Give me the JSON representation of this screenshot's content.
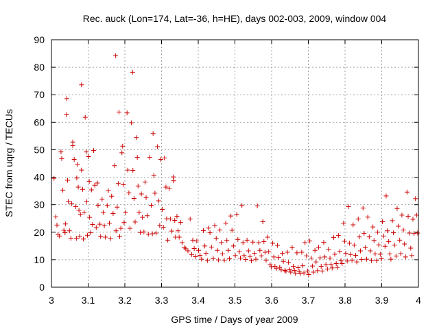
{
  "chart_data": {
    "type": "scatter",
    "title": "Rec. auck (Lon=174, Lat=-36, h=HE), days 002-003, 2009, window 004",
    "xlabel": "GPS time / Days of year 2009",
    "ylabel": "STEC from uqrg / TECUs",
    "xlim": [
      3.0,
      4.0
    ],
    "ylim": [
      0,
      90
    ],
    "xticks": [
      3.0,
      3.1,
      3.2,
      3.3,
      3.4,
      3.5,
      3.6,
      3.7,
      3.8,
      3.9,
      4.0
    ],
    "xtick_labels": [
      "3",
      "3.1",
      "3.2",
      "3.3",
      "3.4",
      "3.5",
      "3.6",
      "3.7",
      "3.8",
      "3.9",
      "4"
    ],
    "yticks": [
      0,
      10,
      20,
      30,
      40,
      50,
      60,
      70,
      80,
      90
    ],
    "ytick_labels": [
      "0",
      "10",
      "20",
      "30",
      "40",
      "50",
      "60",
      "70",
      "80",
      "90"
    ],
    "grid": true,
    "marker": "+",
    "color": "#cc0000",
    "series": [
      {
        "name": "STEC",
        "points": [
          [
            3.007,
            39.6
          ],
          [
            3.012,
            25.6
          ],
          [
            3.015,
            22.6
          ],
          [
            3.018,
            19.2
          ],
          [
            3.022,
            18.6
          ],
          [
            3.026,
            49.2
          ],
          [
            3.028,
            46.8
          ],
          [
            3.031,
            35.3
          ],
          [
            3.034,
            20.7
          ],
          [
            3.037,
            19.8
          ],
          [
            3.038,
            23.0
          ],
          [
            3.041,
            62.7
          ],
          [
            3.042,
            68.6
          ],
          [
            3.044,
            38.9
          ],
          [
            3.046,
            31.2
          ],
          [
            3.049,
            20.5
          ],
          [
            3.053,
            17.8
          ],
          [
            3.055,
            30.4
          ],
          [
            3.058,
            52.8
          ],
          [
            3.058,
            51.5
          ],
          [
            3.062,
            46.5
          ],
          [
            3.066,
            29.3
          ],
          [
            3.068,
            17.8
          ],
          [
            3.069,
            39.7
          ],
          [
            3.071,
            44.7
          ],
          [
            3.073,
            36.4
          ],
          [
            3.075,
            28.0
          ],
          [
            3.077,
            18.5
          ],
          [
            3.079,
            26.5
          ],
          [
            3.082,
            73.6
          ],
          [
            3.082,
            42.6
          ],
          [
            3.085,
            35.6
          ],
          [
            3.087,
            17.5
          ],
          [
            3.089,
            27.2
          ],
          [
            3.092,
            61.8
          ],
          [
            3.095,
            49.2
          ],
          [
            3.096,
            31.1
          ],
          [
            3.098,
            18.9
          ],
          [
            3.101,
            47.5
          ],
          [
            3.103,
            38.5
          ],
          [
            3.104,
            25.4
          ],
          [
            3.107,
            19.8
          ],
          [
            3.109,
            35.4
          ],
          [
            3.112,
            22.8
          ],
          [
            3.115,
            49.7
          ],
          [
            3.118,
            37.1
          ],
          [
            3.122,
            21.7
          ],
          [
            3.125,
            37.9
          ],
          [
            3.127,
            29.8
          ],
          [
            3.132,
            22.9
          ],
          [
            3.134,
            18.4
          ],
          [
            3.138,
            32.0
          ],
          [
            3.141,
            27.2
          ],
          [
            3.144,
            22.3
          ],
          [
            3.147,
            18.2
          ],
          [
            3.152,
            29.7
          ],
          [
            3.155,
            35.1
          ],
          [
            3.158,
            23.3
          ],
          [
            3.161,
            17.7
          ],
          [
            3.164,
            33.1
          ],
          [
            3.168,
            26.8
          ],
          [
            3.172,
            44.2
          ],
          [
            3.175,
            84.2
          ],
          [
            3.176,
            20.5
          ],
          [
            3.179,
            29.1
          ],
          [
            3.182,
            37.7
          ],
          [
            3.184,
            63.7
          ],
          [
            3.186,
            18.4
          ],
          [
            3.189,
            21.4
          ],
          [
            3.192,
            48.9
          ],
          [
            3.194,
            51.3
          ],
          [
            3.196,
            37.3
          ],
          [
            3.198,
            23.5
          ],
          [
            3.202,
            27.2
          ],
          [
            3.206,
            63.4
          ],
          [
            3.208,
            42.6
          ],
          [
            3.211,
            34.3
          ],
          [
            3.214,
            21.4
          ],
          [
            3.218,
            59.8
          ],
          [
            3.221,
            78.2
          ],
          [
            3.222,
            42.5
          ],
          [
            3.225,
            32.3
          ],
          [
            3.228,
            23.7
          ],
          [
            3.231,
            54.4
          ],
          [
            3.234,
            47.2
          ],
          [
            3.236,
            36.8
          ],
          [
            3.239,
            27.2
          ],
          [
            3.242,
            19.9
          ],
          [
            3.245,
            33.9
          ],
          [
            3.248,
            25.4
          ],
          [
            3.252,
            20.1
          ],
          [
            3.255,
            38.2
          ],
          [
            3.258,
            32.6
          ],
          [
            3.261,
            26.0
          ],
          [
            3.264,
            19.3
          ],
          [
            3.268,
            47.2
          ],
          [
            3.272,
            29.8
          ],
          [
            3.275,
            19.4
          ],
          [
            3.277,
            55.9
          ],
          [
            3.279,
            40.6
          ],
          [
            3.282,
            34.2
          ],
          [
            3.285,
            19.7
          ],
          [
            3.289,
            51.1
          ],
          [
            3.292,
            31.4
          ],
          [
            3.295,
            22.4
          ],
          [
            3.298,
            46.5
          ],
          [
            3.302,
            28.3
          ],
          [
            3.305,
            21.8
          ],
          [
            3.308,
            47.0
          ],
          [
            3.312,
            36.4
          ],
          [
            3.314,
            24.9
          ],
          [
            3.317,
            17.1
          ],
          [
            3.321,
            35.9
          ],
          [
            3.324,
            24.8
          ],
          [
            3.328,
            20.4
          ],
          [
            3.332,
            40.1
          ],
          [
            3.333,
            38.7
          ],
          [
            3.336,
            24.3
          ],
          [
            3.338,
            18.2
          ],
          [
            3.342,
            25.8
          ],
          [
            3.345,
            20.5
          ],
          [
            3.348,
            18.2
          ],
          [
            3.352,
            23.6
          ],
          [
            3.356,
            16.2
          ],
          [
            3.362,
            14.4
          ],
          [
            3.366,
            14.0
          ],
          [
            3.372,
            13.2
          ],
          [
            3.378,
            24.8
          ],
          [
            3.382,
            11.9
          ],
          [
            3.385,
            17.1
          ],
          [
            3.389,
            14.1
          ],
          [
            3.392,
            11.1
          ],
          [
            3.396,
            16.8
          ],
          [
            3.401,
            13.4
          ],
          [
            3.405,
            11.6
          ],
          [
            3.409,
            10.2
          ],
          [
            3.414,
            20.6
          ],
          [
            3.418,
            15.0
          ],
          [
            3.421,
            12.3
          ],
          [
            3.425,
            9.7
          ],
          [
            3.428,
            21.5
          ],
          [
            3.432,
            19.8
          ],
          [
            3.436,
            14.6
          ],
          [
            3.441,
            10.4
          ],
          [
            3.445,
            22.4
          ],
          [
            3.449,
            17.8
          ],
          [
            3.452,
            13.4
          ],
          [
            3.455,
            9.9
          ],
          [
            3.459,
            20.8
          ],
          [
            3.463,
            16.2
          ],
          [
            3.466,
            12.1
          ],
          [
            3.471,
            9.8
          ],
          [
            3.475,
            23.3
          ],
          [
            3.478,
            17.0
          ],
          [
            3.482,
            13.4
          ],
          [
            3.485,
            10.3
          ],
          [
            3.489,
            25.9
          ],
          [
            3.492,
            20.7
          ],
          [
            3.496,
            15.0
          ],
          [
            3.501,
            11.5
          ],
          [
            3.505,
            26.5
          ],
          [
            3.508,
            17.4
          ],
          [
            3.512,
            12.9
          ],
          [
            3.515,
            10.6
          ],
          [
            3.519,
            29.7
          ],
          [
            3.522,
            16.2
          ],
          [
            3.525,
            11.5
          ],
          [
            3.529,
            10.1
          ],
          [
            3.533,
            17.1
          ],
          [
            3.537,
            13.2
          ],
          [
            3.541,
            11.2
          ],
          [
            3.545,
            9.6
          ],
          [
            3.549,
            16.4
          ],
          [
            3.553,
            12.3
          ],
          [
            3.557,
            10.2
          ],
          [
            3.561,
            29.6
          ],
          [
            3.565,
            16.2
          ],
          [
            3.568,
            13.4
          ],
          [
            3.572,
            11.4
          ],
          [
            3.576,
            23.8
          ],
          [
            3.579,
            16.6
          ],
          [
            3.582,
            12.7
          ],
          [
            3.585,
            9.8
          ],
          [
            3.589,
            18.2
          ],
          [
            3.592,
            12.9
          ],
          [
            3.596,
            8.2
          ],
          [
            3.599,
            7.4
          ],
          [
            3.603,
            16.0
          ],
          [
            3.606,
            11.0
          ],
          [
            3.609,
            7.6
          ],
          [
            3.613,
            6.8
          ],
          [
            3.616,
            15.2
          ],
          [
            3.619,
            10.8
          ],
          [
            3.622,
            7.2
          ],
          [
            3.626,
            6.3
          ],
          [
            3.629,
            12.3
          ],
          [
            3.632,
            9.4
          ],
          [
            3.636,
            6.1
          ],
          [
            3.639,
            5.8
          ],
          [
            3.643,
            12.7
          ],
          [
            3.646,
            9.0
          ],
          [
            3.649,
            6.4
          ],
          [
            3.652,
            5.5
          ],
          [
            3.656,
            14.4
          ],
          [
            3.659,
            7.6
          ],
          [
            3.662,
            6.1
          ],
          [
            3.665,
            5.0
          ],
          [
            3.669,
            12.5
          ],
          [
            3.672,
            7.1
          ],
          [
            3.675,
            5.7
          ],
          [
            3.678,
            4.9
          ],
          [
            3.682,
            12.7
          ],
          [
            3.685,
            7.8
          ],
          [
            3.688,
            5.2
          ],
          [
            3.691,
            16.2
          ],
          [
            3.695,
            11.4
          ],
          [
            3.698,
            5.9
          ],
          [
            3.701,
            4.6
          ],
          [
            3.704,
            16.8
          ],
          [
            3.708,
            10.6
          ],
          [
            3.711,
            7.7
          ],
          [
            3.714,
            5.5
          ],
          [
            3.718,
            13.4
          ],
          [
            3.721,
            9.2
          ],
          [
            3.725,
            6.0
          ],
          [
            3.728,
            14.5
          ],
          [
            3.732,
            10.7
          ],
          [
            3.735,
            7.6
          ],
          [
            3.738,
            5.9
          ],
          [
            3.742,
            16.3
          ],
          [
            3.745,
            11.0
          ],
          [
            3.748,
            8.2
          ],
          [
            3.752,
            6.6
          ],
          [
            3.755,
            13.8
          ],
          [
            3.759,
            10.6
          ],
          [
            3.762,
            8.3
          ],
          [
            3.765,
            7.0
          ],
          [
            3.769,
            18.1
          ],
          [
            3.772,
            12.0
          ],
          [
            3.776,
            8.6
          ],
          [
            3.779,
            7.2
          ],
          [
            3.782,
            18.8
          ],
          [
            3.786,
            13.0
          ],
          [
            3.789,
            9.6
          ],
          [
            3.792,
            8.6
          ],
          [
            3.796,
            23.3
          ],
          [
            3.799,
            16.7
          ],
          [
            3.802,
            12.3
          ],
          [
            3.806,
            9.5
          ],
          [
            3.809,
            29.3
          ],
          [
            3.812,
            16.0
          ],
          [
            3.815,
            11.9
          ],
          [
            3.819,
            9.8
          ],
          [
            3.822,
            22.7
          ],
          [
            3.825,
            15.3
          ],
          [
            3.829,
            11.6
          ],
          [
            3.832,
            9.2
          ],
          [
            3.836,
            24.8
          ],
          [
            3.839,
            18.3
          ],
          [
            3.842,
            13.2
          ],
          [
            3.845,
            10.1
          ],
          [
            3.849,
            28.8
          ],
          [
            3.852,
            19.6
          ],
          [
            3.855,
            14.4
          ],
          [
            3.859,
            10.2
          ],
          [
            3.862,
            25.5
          ],
          [
            3.866,
            18.3
          ],
          [
            3.869,
            13.2
          ],
          [
            3.872,
            9.7
          ],
          [
            3.876,
            21.9
          ],
          [
            3.879,
            17.0
          ],
          [
            3.882,
            12.1
          ],
          [
            3.886,
            9.6
          ],
          [
            3.889,
            20.0
          ],
          [
            3.892,
            15.4
          ],
          [
            3.896,
            12.0
          ],
          [
            3.899,
            10.3
          ],
          [
            3.902,
            23.8
          ],
          [
            3.905,
            18.6
          ],
          [
            3.909,
            14.9
          ],
          [
            3.912,
            33.2
          ],
          [
            3.915,
            20.5
          ],
          [
            3.919,
            16.6
          ],
          [
            3.922,
            12.1
          ],
          [
            3.925,
            10.2
          ],
          [
            3.929,
            24.2
          ],
          [
            3.932,
            19.8
          ],
          [
            3.935,
            15.3
          ],
          [
            3.939,
            11.3
          ],
          [
            3.942,
            28.6
          ],
          [
            3.945,
            22.2
          ],
          [
            3.949,
            17.1
          ],
          [
            3.952,
            12.2
          ],
          [
            3.955,
            26.2
          ],
          [
            3.959,
            20.8
          ],
          [
            3.962,
            15.7
          ],
          [
            3.965,
            11.0
          ],
          [
            3.969,
            34.6
          ],
          [
            3.972,
            25.8
          ],
          [
            3.975,
            19.7
          ],
          [
            3.979,
            14.2
          ],
          [
            3.982,
            11.5
          ],
          [
            3.985,
            24.7
          ],
          [
            3.988,
            19.5
          ],
          [
            3.992,
            32.2
          ],
          [
            3.995,
            26.2
          ],
          [
            3.998,
            19.7
          ]
        ]
      }
    ]
  }
}
